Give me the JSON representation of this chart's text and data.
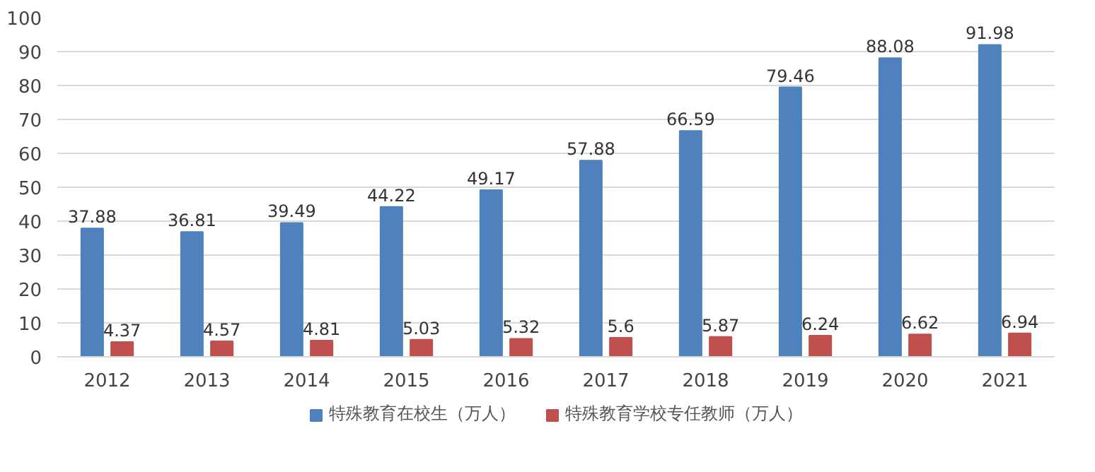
{
  "chart_data": {
    "type": "bar",
    "categories": [
      "2012",
      "2013",
      "2014",
      "2015",
      "2016",
      "2017",
      "2018",
      "2019",
      "2020",
      "2021"
    ],
    "series": [
      {
        "name": "特殊教育在校生（万人）",
        "color": "#4f81bd",
        "values": [
          37.88,
          36.81,
          39.49,
          44.22,
          49.17,
          57.88,
          66.59,
          79.46,
          88.08,
          91.98
        ]
      },
      {
        "name": "特殊教育学校专任教师（万人）",
        "color": "#c0504d",
        "values": [
          4.37,
          4.57,
          4.81,
          5.03,
          5.32,
          5.6,
          5.87,
          6.24,
          6.62,
          6.94
        ]
      }
    ],
    "ylim": [
      0,
      100
    ],
    "yticks": [
      0,
      10,
      20,
      30,
      40,
      50,
      60,
      70,
      80,
      90,
      100
    ],
    "grid": "y",
    "legend": "bottom",
    "data_labels": true
  }
}
